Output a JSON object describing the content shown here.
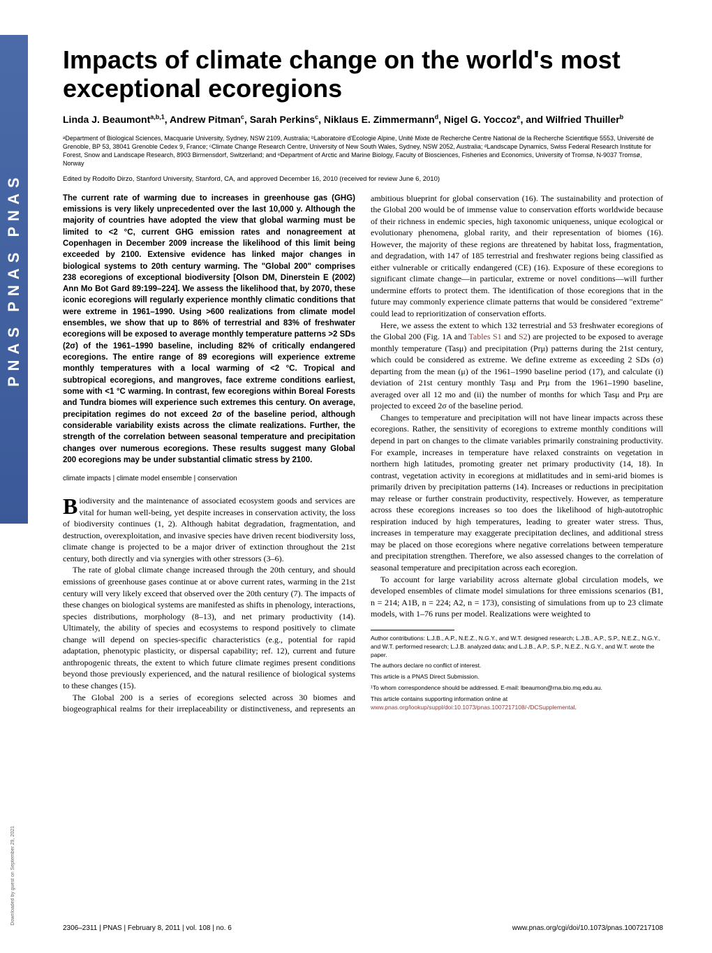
{
  "banner": "PNAS  PNAS  PNAS",
  "download_note": "Downloaded by guest on September 29, 2021",
  "title": "Impacts of climate change on the world's most exceptional ecoregions",
  "authors_html": "Linda J. Beaumont<sup>a,b,1</sup>, Andrew Pitman<sup>c</sup>, Sarah Perkins<sup>c</sup>, Niklaus E. Zimmermann<sup>d</sup>, Nigel G. Yoccoz<sup>e</sup>, and Wilfried Thuiller<sup>b</sup>",
  "affiliations": "ᵃDepartment of Biological Sciences, Macquarie University, Sydney, NSW 2109, Australia; ᵇLaboratoire d'Ecologie Alpine, Unité Mixte de Recherche Centre National de la Recherche Scientifique 5553, Université de Grenoble, BP 53, 38041 Grenoble Cedex 9, France; ᶜClimate Change Research Centre, University of New South Wales, Sydney, NSW 2052, Australia; ᵈLandscape Dynamics, Swiss Federal Research Institute for Forest, Snow and Landscape Research, 8903 Birmensdorf, Switzerland; and ᵉDepartment of Arctic and Marine Biology, Faculty of Biosciences, Fisheries and Economics, University of Tromsø, N-9037 Tromsø, Norway",
  "edited": "Edited by Rodolfo Dirzo, Stanford University, Stanford, CA, and approved December 16, 2010 (received for review June 6, 2010)",
  "abstract": "The current rate of warming due to increases in greenhouse gas (GHG) emissions is very likely unprecedented over the last 10,000 y. Although the majority of countries have adopted the view that global warming must be limited to <2 °C, current GHG emission rates and nonagreement at Copenhagen in December 2009 increase the likelihood of this limit being exceeded by 2100. Extensive evidence has linked major changes in biological systems to 20th century warming. The \"Global 200\" comprises 238 ecoregions of exceptional biodiversity [Olson DM, Dinerstein E (2002) Ann Mo Bot Gard 89:199–224]. We assess the likelihood that, by 2070, these iconic ecoregions will regularly experience monthly climatic conditions that were extreme in 1961–1990. Using >600 realizations from climate model ensembles, we show that up to 86% of terrestrial and 83% of freshwater ecoregions will be exposed to average monthly temperature patterns >2 SDs (2σ) of the 1961–1990 baseline, including 82% of critically endangered ecoregions. The entire range of 89 ecoregions will experience extreme monthly temperatures with a local warming of <2 °C. Tropical and subtropical ecoregions, and mangroves, face extreme conditions earliest, some with <1 °C warming. In contrast, few ecoregions within Boreal Forests and Tundra biomes will experience such extremes this century. On average, precipitation regimes do not exceed 2σ of the baseline period, although considerable variability exists across the climate realizations. Further, the strength of the correlation between seasonal temperature and precipitation changes over numerous ecoregions. These results suggest many Global 200 ecoregions may be under substantial climatic stress by 2100.",
  "keywords": "climate impacts | climate model ensemble | conservation",
  "body": {
    "p1": "iodiversity and the maintenance of associated ecosystem goods and services are vital for human well-being, yet despite increases in conservation activity, the loss of biodiversity continues (1, 2). Although habitat degradation, fragmentation, and destruction, overexploitation, and invasive species have driven recent biodiversity loss, climate change is projected to be a major driver of extinction throughout the 21st century, both directly and via synergies with other stressors (3–6).",
    "p2": "The rate of global climate change increased through the 20th century, and should emissions of greenhouse gases continue at or above current rates, warming in the 21st century will very likely exceed that observed over the 20th century (7). The impacts of these changes on biological systems are manifested as shifts in phenology, interactions, species distributions, morphology (8–13), and net primary productivity (14). Ultimately, the ability of species and ecosystems to respond positively to climate change will depend on species-specific characteristics (e.g., potential for rapid adaptation, phenotypic plasticity, or dispersal capability; ref. 12), current and future anthropogenic threats, the extent to which future climate regimes present conditions beyond those previously experienced, and the natural resilience of biological systems to these changes (15).",
    "p3": "The Global 200 is a series of ecoregions selected across 30 biomes and biogeographical realms for their irreplaceability or distinctiveness, and represents an ambitious blueprint for global conservation (16). The sustainability and protection of the Global 200 would be of immense value to conservation efforts worldwide because of their richness in endemic species, high taxonomic uniqueness, unique ecological or evolutionary phenomena, global rarity, and their representation of biomes (16). However, the majority of these regions are threatened by habitat loss, fragmentation, and degradation, with 147 of 185 terrestrial and freshwater regions being classified as either vulnerable or critically endangered (CE) (16). Exposure of these ecoregions to significant climate change—in particular, extreme or novel conditions—will further undermine efforts to protect them. The identification of those ecoregions that in the future may commonly experience climate patterns that would be considered \"extreme\" could lead to reprioritization of conservation efforts.",
    "p4_pre": "Here, we assess the extent to which 132 terrestrial and 53 freshwater ecoregions of the Global 200 (Fig. 1A and ",
    "p4_link1": "Tables S1",
    "p4_mid": " and ",
    "p4_link2": "S2",
    "p4_post": ") are projected to be exposed to average monthly temperature (Tasμ) and precipitation (Prμ) patterns during the 21st century, which could be considered as extreme. We define extreme as exceeding 2 SDs (σ) departing from the mean (μ) of the 1961–1990 baseline period (17), and calculate (i) deviation of 21st century monthly Tasμ and Prμ from the 1961–1990 baseline, averaged over all 12 mo and (ii) the number of months for which Tasμ and Prμ are projected to exceed 2σ of the baseline period.",
    "p5": "Changes to temperature and precipitation will not have linear impacts across these ecoregions. Rather, the sensitivity of ecoregions to extreme monthly conditions will depend in part on changes to the climate variables primarily constraining productivity. For example, increases in temperature have relaxed constraints on vegetation in northern high latitudes, promoting greater net primary productivity (14, 18). In contrast, vegetation activity in ecoregions at midlatitudes and in semi-arid biomes is primarily driven by precipitation patterns (14). Increases or reductions in precipitation may release or further constrain productivity, respectively. However, as temperature across these ecoregions increases so too does the likelihood of high-autotrophic respiration induced by high temperatures, leading to greater water stress. Thus, increases in temperature may exaggerate precipitation declines, and additional stress may be placed on those ecoregions where negative correlations between temperature and precipitation strengthen. Therefore, we also assessed changes to the correlation of seasonal temperature and precipitation across each ecoregion.",
    "p6": "To account for large variability across alternate global circulation models, we developed ensembles of climate model simulations for three emissions scenarios (B1, n = 214; A1B, n = 224; A2, n = 173), consisting of simulations from up to 23 climate models, with 1–76 runs per model. Realizations were weighted to"
  },
  "footnotes": {
    "contrib": "Author contributions: L.J.B., A.P., N.E.Z., N.G.Y., and W.T. designed research; L.J.B., A.P., S.P., N.E.Z., N.G.Y., and W.T. performed research; L.J.B. analyzed data; and L.J.B., A.P., S.P., N.E.Z., N.G.Y., and W.T. wrote the paper.",
    "conflict": "The authors declare no conflict of interest.",
    "submission": "This article is a PNAS Direct Submission.",
    "correspond": "¹To whom correspondence should be addressed. E-mail: lbeaumon@rna.bio.mq.edu.au.",
    "supp_pre": "This article contains supporting information online at ",
    "supp_link": "www.pnas.org/lookup/suppl/doi:10.1073/pnas.1007217108/-/DCSupplemental",
    "supp_post": "."
  },
  "footer": {
    "left": "2306–2311  |  PNAS  |  February 8, 2011  |  vol. 108  |  no. 6",
    "right": "www.pnas.org/cgi/doi/10.1073/pnas.1007217108"
  },
  "colors": {
    "link": "#8b3a3a",
    "banner_bg": "#3b5998",
    "text": "#000000",
    "bg": "#ffffff"
  },
  "fonts": {
    "title_size": 36,
    "author_size": 14,
    "affil_size": 9,
    "body_size": 12,
    "abstract_size": 11.5,
    "footnote_size": 8.5
  }
}
